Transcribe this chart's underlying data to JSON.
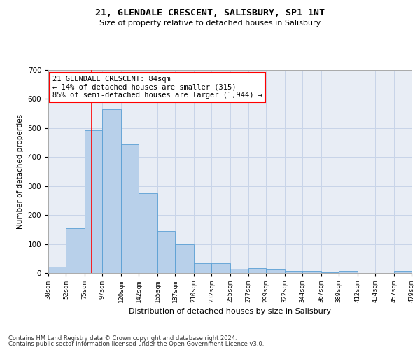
{
  "title": "21, GLENDALE CRESCENT, SALISBURY, SP1 1NT",
  "subtitle": "Size of property relative to detached houses in Salisbury",
  "xlabel": "Distribution of detached houses by size in Salisbury",
  "ylabel": "Number of detached properties",
  "footnote1": "Contains HM Land Registry data © Crown copyright and database right 2024.",
  "footnote2": "Contains public sector information licensed under the Open Government Licence v3.0.",
  "annotation_line1": "21 GLENDALE CRESCENT: 84sqm",
  "annotation_line2": "← 14% of detached houses are smaller (315)",
  "annotation_line3": "85% of semi-detached houses are larger (1,944) →",
  "bar_color": "#b8d0ea",
  "bar_edge_color": "#5a9fd4",
  "property_line_x": 84,
  "bar_data": [
    {
      "bin_start": 30,
      "bin_end": 52,
      "count": 22
    },
    {
      "bin_start": 52,
      "bin_end": 75,
      "count": 155
    },
    {
      "bin_start": 75,
      "bin_end": 97,
      "count": 493
    },
    {
      "bin_start": 97,
      "bin_end": 120,
      "count": 566
    },
    {
      "bin_start": 120,
      "bin_end": 142,
      "count": 443
    },
    {
      "bin_start": 142,
      "bin_end": 165,
      "count": 275
    },
    {
      "bin_start": 165,
      "bin_end": 187,
      "count": 145
    },
    {
      "bin_start": 187,
      "bin_end": 210,
      "count": 98
    },
    {
      "bin_start": 210,
      "bin_end": 232,
      "count": 35
    },
    {
      "bin_start": 232,
      "bin_end": 255,
      "count": 33
    },
    {
      "bin_start": 255,
      "bin_end": 277,
      "count": 15
    },
    {
      "bin_start": 277,
      "bin_end": 299,
      "count": 18
    },
    {
      "bin_start": 299,
      "bin_end": 322,
      "count": 13
    },
    {
      "bin_start": 322,
      "bin_end": 344,
      "count": 8
    },
    {
      "bin_start": 344,
      "bin_end": 367,
      "count": 7
    },
    {
      "bin_start": 367,
      "bin_end": 389,
      "count": 3
    },
    {
      "bin_start": 389,
      "bin_end": 412,
      "count": 7
    },
    {
      "bin_start": 412,
      "bin_end": 434,
      "count": 0
    },
    {
      "bin_start": 434,
      "bin_end": 457,
      "count": 0
    },
    {
      "bin_start": 457,
      "bin_end": 479,
      "count": 7
    }
  ],
  "xlim": [
    30,
    479
  ],
  "ylim": [
    0,
    700
  ],
  "yticks": [
    0,
    100,
    200,
    300,
    400,
    500,
    600,
    700
  ],
  "xtick_labels": [
    "30sqm",
    "52sqm",
    "75sqm",
    "97sqm",
    "120sqm",
    "142sqm",
    "165sqm",
    "187sqm",
    "210sqm",
    "232sqm",
    "255sqm",
    "277sqm",
    "299sqm",
    "322sqm",
    "344sqm",
    "367sqm",
    "389sqm",
    "412sqm",
    "434sqm",
    "457sqm",
    "479sqm"
  ],
  "xtick_positions": [
    30,
    52,
    75,
    97,
    120,
    142,
    165,
    187,
    210,
    232,
    255,
    277,
    299,
    322,
    344,
    367,
    389,
    412,
    434,
    457,
    479
  ],
  "grid_color": "#c8d4e8",
  "bg_color": "#e8edf5"
}
